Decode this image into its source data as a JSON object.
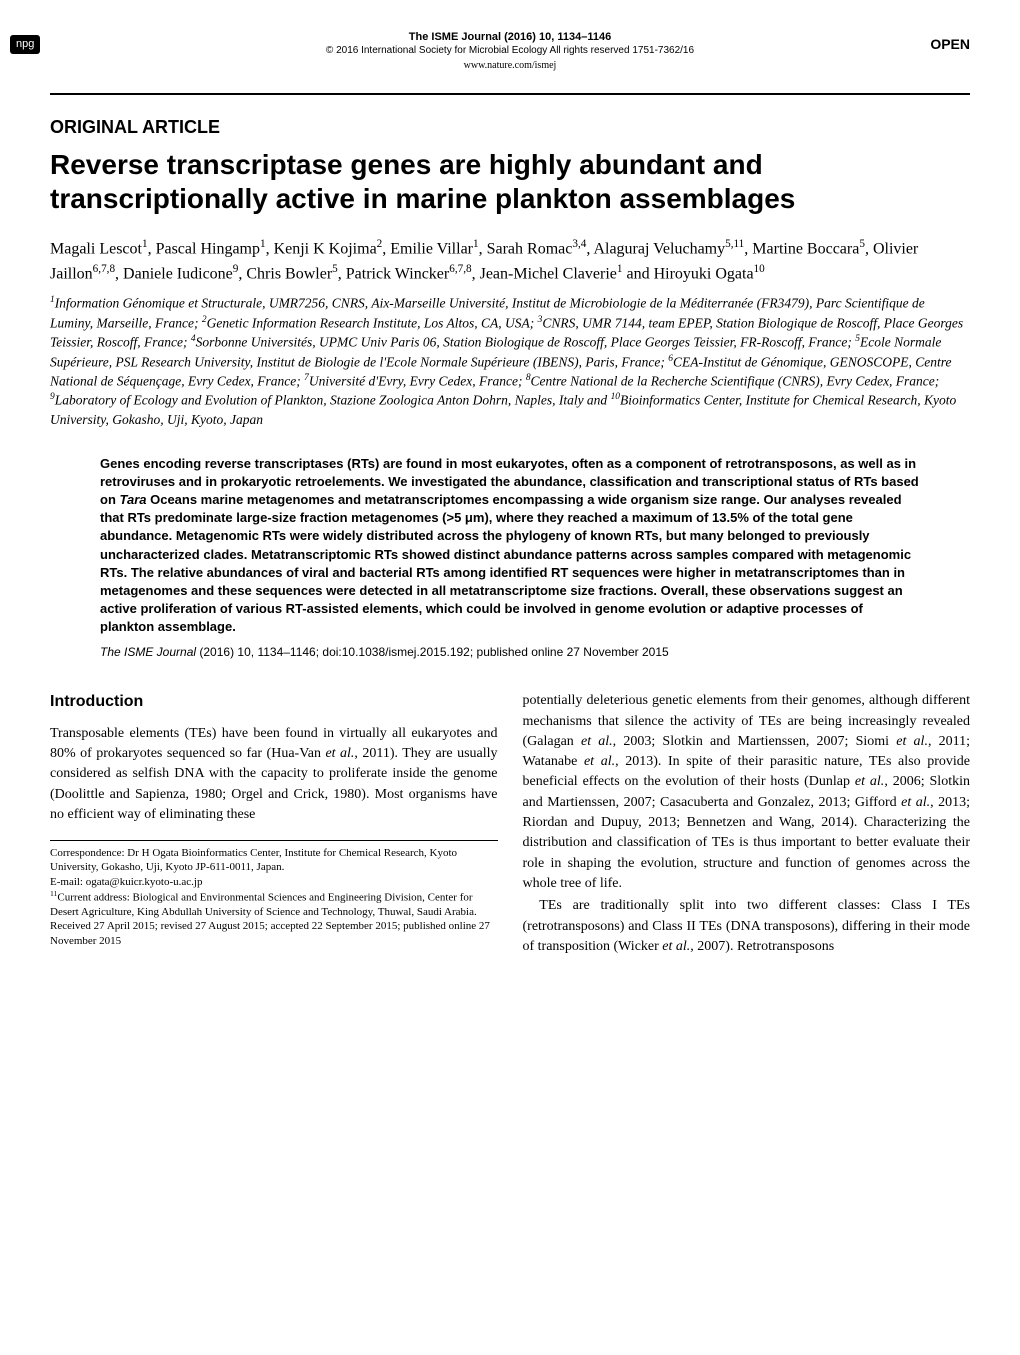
{
  "header": {
    "npg_badge": "npg",
    "journal_title": "The ISME Journal (2016) 10, 1134–1146",
    "copyright": "© 2016 International Society for Microbial Ecology  All rights reserved 1751-7362/16",
    "website": "www.nature.com/ismej",
    "open_badge": "OPEN"
  },
  "article": {
    "type": "ORIGINAL ARTICLE",
    "title": "Reverse transcriptase genes are highly abundant and transcriptionally active in marine plankton assemblages",
    "authors_html": "Magali Lescot<sup>1</sup>, Pascal Hingamp<sup>1</sup>, Kenji K Kojima<sup>2</sup>, Emilie Villar<sup>1</sup>, Sarah Romac<sup>3,4</sup>, Alaguraj Veluchamy<sup>5,11</sup>, Martine Boccara<sup>5</sup>, Olivier Jaillon<sup>6,7,8</sup>, Daniele Iudicone<sup>9</sup>, Chris Bowler<sup>5</sup>, Patrick Wincker<sup>6,7,8</sup>, Jean-Michel Claverie<sup>1</sup> and Hiroyuki Ogata<sup>10</sup>",
    "affiliations_html": "<sup>1</sup>Information Génomique et Structurale, UMR7256, CNRS, Aix-Marseille Université, Institut de Microbiologie de la Méditerranée (FR3479), Parc Scientifique de Luminy, Marseille, France; <sup>2</sup>Genetic Information Research Institute, Los Altos, CA, USA; <sup>3</sup>CNRS, UMR 7144, team EPEP, Station Biologique de Roscoff, Place Georges Teissier, Roscoff, France; <sup>4</sup>Sorbonne Universités, UPMC Univ Paris 06, Station Biologique de Roscoff, Place Georges Teissier, FR-Roscoff, France; <sup>5</sup>Ecole Normale Supérieure, PSL Research University, Institut de Biologie de l'Ecole Normale Supérieure (IBENS), Paris, France; <sup>6</sup>CEA-Institut de Génomique, GENOSCOPE, Centre National de Séquençage, Evry Cedex, France; <sup>7</sup>Université d'Evry, Evry Cedex, France; <sup>8</sup>Centre National de la Recherche Scientifique (CNRS), Evry Cedex, France; <sup>9</sup>Laboratory of Ecology and Evolution of Plankton, Stazione Zoologica Anton Dohrn, Naples, Italy and <sup>10</sup>Bioinformatics Center, Institute for Chemical Research, Kyoto University, Gokasho, Uji, Kyoto, Japan"
  },
  "abstract": {
    "text_html": "Genes encoding reverse transcriptases (RTs) are found in most eukaryotes, often as a component of retrotransposons, as well as in retroviruses and in prokaryotic retroelements. We investigated the abundance, classification and transcriptional status of RTs based on <span class=\"italic\">Tara</span> Oceans marine metagenomes and metatranscriptomes encompassing a wide organism size range. Our analyses revealed that RTs predominate large-size fraction metagenomes (>5 μm), where they reached a maximum of 13.5% of the total gene abundance. Metagenomic RTs were widely distributed across the phylogeny of known RTs, but many belonged to previously uncharacterized clades. Metatranscriptomic RTs showed distinct abundance patterns across samples compared with metagenomic RTs. The relative abundances of viral and bacterial RTs among identified RT sequences were higher in metatranscriptomes than in metagenomes and these sequences were detected in all metatranscriptome size fractions. Overall, these observations suggest an active proliferation of various RT-assisted elements, which could be involved in genome evolution or adaptive processes of plankton assemblage."
  },
  "citation": {
    "journal": "The ISME Journal",
    "year_vol": "(2016) 10,",
    "pages": "1134–1146;",
    "doi": "doi:10.1038/ismej.2015.192;",
    "pub_date": "published online 27 November 2015"
  },
  "introduction": {
    "heading": "Introduction",
    "col1_html": "Transposable elements (TEs) have been found in virtually all eukaryotes and 80% of prokaryotes sequenced so far (Hua-Van <span class=\"italic\">et al.</span>, 2011). They are usually considered as selfish DNA with the capacity to proliferate inside the genome (Doolittle and Sapienza, 1980; Orgel and Crick, 1980). Most organisms have no efficient way of eliminating these",
    "col2_html": "potentially deleterious genetic elements from their genomes, although different mechanisms that silence the activity of TEs are being increasingly revealed (Galagan <span class=\"italic\">et al.</span>, 2003; Slotkin and Martienssen, 2007; Siomi <span class=\"italic\">et al.</span>, 2011; Watanabe <span class=\"italic\">et al.</span>, 2013). In spite of their parasitic nature, TEs also provide beneficial effects on the evolution of their hosts (Dunlap <span class=\"italic\">et al.</span>, 2006; Slotkin and Martienssen, 2007; Casacuberta and Gonzalez, 2013; Gifford <span class=\"italic\">et al.</span>, 2013; Riordan and Dupuy, 2013; Bennetzen and Wang, 2014). Characterizing the distribution and classification of TEs is thus important to better evaluate their role in shaping the evolution, structure and function of genomes across the whole tree of life.",
    "col2_para2_html": "TEs are traditionally split into two different classes: Class I TEs (retrotransposons) and Class II TEs (DNA transposons), differing in their mode of transposition (Wicker <span class=\"italic\">et al.</span>, 2007). Retrotransposons"
  },
  "correspondence": {
    "line1": "Correspondence: Dr H Ogata Bioinformatics Center, Institute for Chemical Research, Kyoto University, Gokasho, Uji, Kyoto JP-611-0011, Japan.",
    "email": "E-mail: ogata@kuicr.kyoto-u.ac.jp",
    "current_address_html": "<sup>11</sup>Current address: Biological and Environmental Sciences and Engineering Division, Center for Desert Agriculture, King Abdullah University of Science and Technology, Thuwal, Saudi Arabia.",
    "received": "Received 27 April 2015; revised 27 August 2015; accepted 22 September 2015; published online 27 November 2015"
  }
}
